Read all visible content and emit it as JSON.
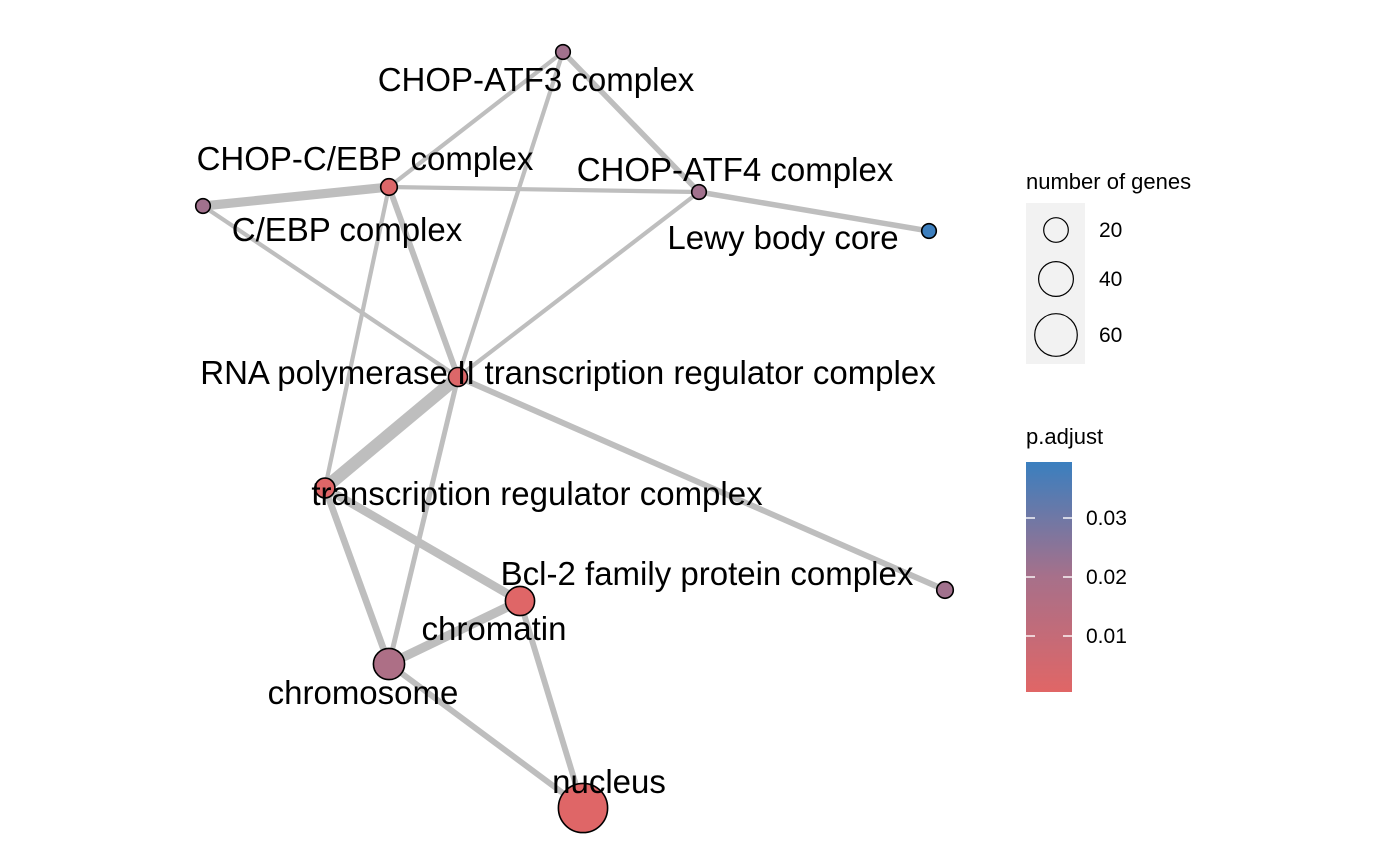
{
  "network": {
    "type": "enrichment-map",
    "nodes": [
      {
        "id": "chop_atf3",
        "label": "CHOP-ATF3 complex",
        "gene_count": 7,
        "p_adjust": 0.021
      },
      {
        "id": "chop_cebp",
        "label": "CHOP-C/EBP complex",
        "gene_count": 9,
        "p_adjust": 0.002
      },
      {
        "id": "chop_atf4",
        "label": "CHOP-ATF4 complex",
        "gene_count": 7,
        "p_adjust": 0.021
      },
      {
        "id": "cebp",
        "label": "C/EBP complex",
        "gene_count": 7,
        "p_adjust": 0.021
      },
      {
        "id": "lewy",
        "label": "Lewy body core",
        "gene_count": 7,
        "p_adjust": 0.039
      },
      {
        "id": "rnapol",
        "label": "RNA polymerase II transcription regulator complex",
        "gene_count": 12,
        "p_adjust": 0.002
      },
      {
        "id": "tfreg",
        "label": "transcription regulator complex",
        "gene_count": 13,
        "p_adjust": 0.001
      },
      {
        "id": "bcl2",
        "label": "Bcl-2 family protein complex",
        "gene_count": 9,
        "p_adjust": 0.021
      },
      {
        "id": "chromatin",
        "label": "chromatin",
        "gene_count": 28,
        "p_adjust": 0.001
      },
      {
        "id": "chromosome",
        "label": "chromosome",
        "gene_count": 32,
        "p_adjust": 0.018
      },
      {
        "id": "nucleus",
        "label": "nucleus",
        "gene_count": 80,
        "p_adjust": 0.001
      }
    ],
    "edges": [
      {
        "source": "chop_atf3",
        "target": "chop_cebp",
        "weight": 1
      },
      {
        "source": "chop_atf3",
        "target": "chop_atf4",
        "weight": 1.3
      },
      {
        "source": "chop_atf3",
        "target": "rnapol",
        "weight": 1
      },
      {
        "source": "chop_cebp",
        "target": "cebp",
        "weight": 2.2
      },
      {
        "source": "chop_cebp",
        "target": "chop_atf4",
        "weight": 1
      },
      {
        "source": "chop_cebp",
        "target": "rnapol",
        "weight": 1.4
      },
      {
        "source": "chop_cebp",
        "target": "tfreg",
        "weight": 1
      },
      {
        "source": "cebp",
        "target": "rnapol",
        "weight": 1
      },
      {
        "source": "chop_atf4",
        "target": "lewy",
        "weight": 1.3
      },
      {
        "source": "chop_atf4",
        "target": "rnapol",
        "weight": 1
      },
      {
        "source": "rnapol",
        "target": "tfreg",
        "weight": 3
      },
      {
        "source": "rnapol",
        "target": "bcl2",
        "weight": 1.4
      },
      {
        "source": "rnapol",
        "target": "chromosome",
        "weight": 1.2
      },
      {
        "source": "tfreg",
        "target": "chromatin",
        "weight": 2
      },
      {
        "source": "tfreg",
        "target": "chromosome",
        "weight": 1.6
      },
      {
        "source": "chromatin",
        "target": "chromosome",
        "weight": 2.2
      },
      {
        "source": "chromatin",
        "target": "nucleus",
        "weight": 1.4
      },
      {
        "source": "chromosome",
        "target": "nucleus",
        "weight": 1.4
      }
    ]
  },
  "legend_size": {
    "title": "number of genes",
    "items": [
      {
        "label": "20",
        "value": 20
      },
      {
        "label": "40",
        "value": 40
      },
      {
        "label": "60",
        "value": 60
      }
    ]
  },
  "legend_color": {
    "title": "p.adjust",
    "low_color": "#E06666",
    "mid_color": "#A7708A",
    "high_color": "#3A7FBF",
    "range": [
      0.0005,
      0.0395
    ],
    "ticks": [
      {
        "label": "0.03",
        "value": 0.03
      },
      {
        "label": "0.02",
        "value": 0.02
      },
      {
        "label": "0.01",
        "value": 0.01
      }
    ]
  },
  "colors": {
    "edge": "#BEBEBE",
    "node_stroke": "#000000",
    "legend_panel": "#F2F2F2"
  }
}
